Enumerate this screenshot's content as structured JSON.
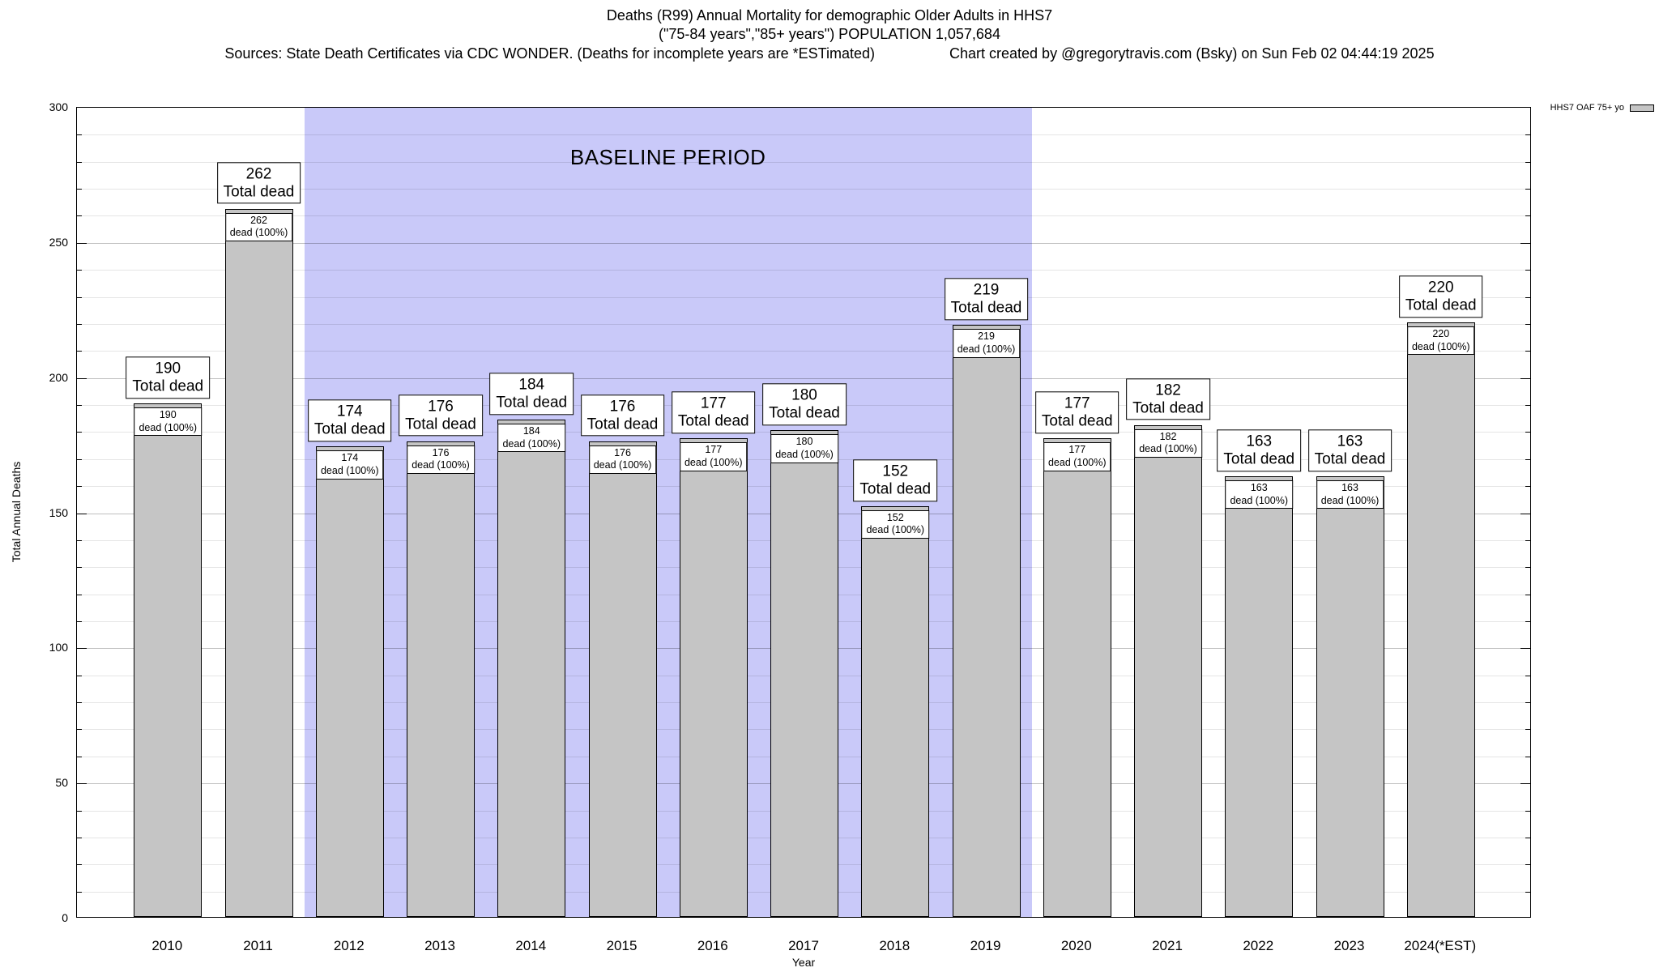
{
  "title": {
    "line1": "Deaths (R99) Annual Mortality for demographic Older Adults in HHS7",
    "line2": "(\"75-84 years\",\"85+ years\") POPULATION 1,057,684",
    "sources": "Sources: State Death Certificates via CDC WONDER. (Deaths for incomplete years are *ESTimated)",
    "credit": "Chart created by @gregorytravis.com (Bsky) on Sun Feb 02 04:44:19 2025"
  },
  "legend": {
    "label": "HHS7 OAF 75+ yo"
  },
  "baseline": {
    "label": "BASELINE PERIOD",
    "from_index": 2,
    "to_index": 9
  },
  "chart_data": {
    "type": "bar",
    "title": "Deaths (R99) Annual Mortality for demographic Older Adults in HHS7",
    "subtitle": "(\"75-84 years\",\"85+ years\") POPULATION 1,057,684",
    "xlabel": "Year",
    "ylabel": "Total Annual Deaths",
    "ylim": [
      0,
      300
    ],
    "ytick_step": 50,
    "minor_step": 10,
    "grid": true,
    "legend_position": "top-right",
    "categories": [
      "2010",
      "2011",
      "2012",
      "2013",
      "2014",
      "2015",
      "2016",
      "2017",
      "2018",
      "2019",
      "2020",
      "2021",
      "2022",
      "2023",
      "2024(*EST)"
    ],
    "series": [
      {
        "name": "HHS7 OAF 75+ yo",
        "values": [
          190,
          262,
          174,
          176,
          184,
          176,
          177,
          180,
          152,
          219,
          177,
          182,
          163,
          163,
          220
        ]
      }
    ],
    "bar_label_top": "Total dead",
    "bar_label_inner": "dead (100%)",
    "annotations": {
      "baseline_label": "BASELINE PERIOD",
      "baseline_span_years": [
        "2012",
        "2019"
      ]
    }
  },
  "colors": {
    "bar_fill": "#c5c5c5",
    "bar_border": "#000000",
    "baseline_bg": "#c9c9f9",
    "text": "#000000",
    "background": "#ffffff"
  }
}
